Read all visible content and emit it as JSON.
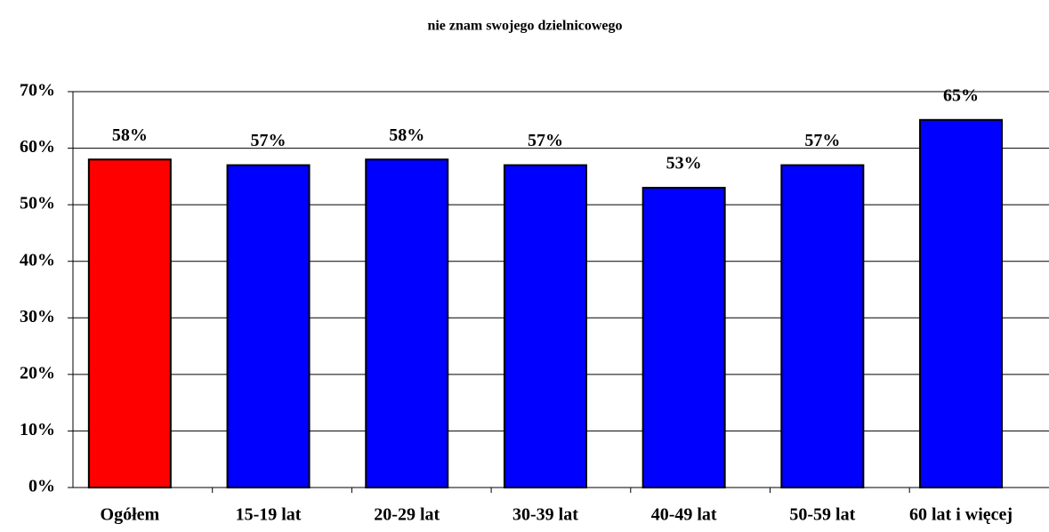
{
  "chart_data": {
    "type": "bar",
    "title": "nie znam swojego dzielnicowego",
    "categories": [
      "Ogółem",
      "15-19 lat",
      "20-29 lat",
      "30-39 lat",
      "40-49 lat",
      "50-59 lat",
      "60 lat i więcej"
    ],
    "values": [
      58,
      57,
      58,
      57,
      53,
      57,
      65
    ],
    "value_labels": [
      "58%",
      "57%",
      "58%",
      "57%",
      "53%",
      "57%",
      "65%"
    ],
    "colors": [
      "#ff0000",
      "#0000ff",
      "#0000ff",
      "#0000ff",
      "#0000ff",
      "#0000ff",
      "#0000ff"
    ],
    "ylim": [
      0,
      70
    ],
    "yticks": [
      {
        "value": 0,
        "label": "0%"
      },
      {
        "value": 10,
        "label": "10%"
      },
      {
        "value": 20,
        "label": "20%"
      },
      {
        "value": 30,
        "label": "30%"
      },
      {
        "value": 40,
        "label": "40%"
      },
      {
        "value": 50,
        "label": "50%"
      },
      {
        "value": 60,
        "label": "60%"
      },
      {
        "value": 70,
        "label": "70%"
      }
    ],
    "grid": true
  }
}
